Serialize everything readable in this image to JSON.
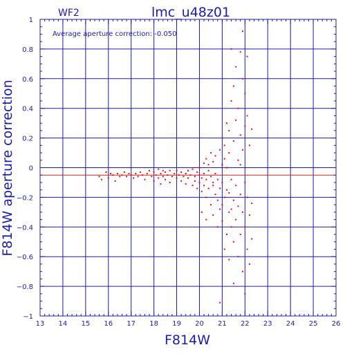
{
  "chart_data": {
    "type": "scatter",
    "title": "lmc_u48z01",
    "chip": "WF2",
    "annotation": "Average aperture correction: -0.050",
    "xlabel": "F814W",
    "ylabel": "F814W aperture correction",
    "xlim": [
      13,
      26
    ],
    "ylim": [
      -1,
      1
    ],
    "x_ticks": [
      "13",
      "14",
      "15",
      "16",
      "17",
      "18",
      "19",
      "20",
      "21",
      "22",
      "23",
      "24",
      "25",
      "26"
    ],
    "y_ticks": [
      "1",
      "0.8",
      "0.6",
      "0.4",
      "0.2",
      "0",
      "−0.2",
      "−0.4",
      "−0.6",
      "−0.8",
      "−1"
    ],
    "grid": true,
    "reference_lines": [
      {
        "name": "zero",
        "y": 0.0,
        "color": "#1c1ca8"
      },
      {
        "name": "average",
        "y": -0.05,
        "color": "#c82020"
      }
    ],
    "marker_color": "#e01010",
    "axis_color": "#1c1ca8",
    "series": [
      {
        "points": [
          [
            15.6,
            -0.06
          ],
          [
            15.7,
            -0.08
          ],
          [
            15.9,
            -0.03
          ],
          [
            16.0,
            -0.07
          ],
          [
            16.1,
            -0.04
          ],
          [
            16.2,
            -0.05
          ],
          [
            16.3,
            -0.09
          ],
          [
            16.4,
            -0.04
          ],
          [
            16.5,
            -0.06
          ],
          [
            16.6,
            -0.05
          ],
          [
            16.7,
            -0.03
          ],
          [
            16.8,
            -0.06
          ],
          [
            16.9,
            -0.04
          ],
          [
            17.0,
            -0.05
          ],
          [
            17.1,
            -0.07
          ],
          [
            17.2,
            -0.04
          ],
          [
            17.3,
            -0.06
          ],
          [
            17.4,
            -0.03
          ],
          [
            17.5,
            -0.05
          ],
          [
            17.6,
            -0.08
          ],
          [
            17.7,
            -0.04
          ],
          [
            17.8,
            -0.02
          ],
          [
            17.9,
            -0.06
          ],
          [
            18.0,
            -0.03
          ],
          [
            18.0,
            -0.09
          ],
          [
            18.1,
            -0.05
          ],
          [
            18.2,
            -0.01
          ],
          [
            18.2,
            -0.07
          ],
          [
            18.3,
            -0.04
          ],
          [
            18.3,
            -0.11
          ],
          [
            18.4,
            -0.02
          ],
          [
            18.4,
            -0.06
          ],
          [
            18.5,
            -0.08
          ],
          [
            18.5,
            -0.03
          ],
          [
            18.6,
            -0.05
          ],
          [
            18.7,
            -0.1
          ],
          [
            18.7,
            -0.02
          ],
          [
            18.8,
            -0.06
          ],
          [
            18.9,
            -0.04
          ],
          [
            19.0,
            -0.07
          ],
          [
            19.0,
            -0.02
          ],
          [
            19.1,
            -0.05
          ],
          [
            19.2,
            -0.09
          ],
          [
            19.2,
            -0.03
          ],
          [
            19.3,
            -0.06
          ],
          [
            19.4,
            -0.04
          ],
          [
            19.4,
            -0.11
          ],
          [
            19.5,
            -0.02
          ],
          [
            19.5,
            -0.07
          ],
          [
            19.6,
            -0.05
          ],
          [
            19.7,
            -0.12
          ],
          [
            19.7,
            -0.01
          ],
          [
            19.8,
            -0.06
          ],
          [
            19.8,
            -0.09
          ],
          [
            19.9,
            -0.03
          ],
          [
            19.9,
            -0.14
          ],
          [
            20.0,
            -0.05
          ],
          [
            20.0,
            -0.1
          ],
          [
            20.0,
            0.0
          ],
          [
            20.1,
            -0.07
          ],
          [
            20.1,
            -0.16
          ],
          [
            20.1,
            -0.3
          ],
          [
            20.2,
            -0.04
          ],
          [
            20.2,
            0.03
          ],
          [
            20.2,
            -0.12
          ],
          [
            20.3,
            -0.08
          ],
          [
            20.3,
            -0.2
          ],
          [
            20.3,
            0.06
          ],
          [
            20.3,
            -0.35
          ],
          [
            20.4,
            -0.02
          ],
          [
            20.4,
            -0.14
          ],
          [
            20.4,
            0.02
          ],
          [
            20.5,
            -0.06
          ],
          [
            20.5,
            -0.25
          ],
          [
            20.5,
            0.1
          ],
          [
            20.6,
            -0.1
          ],
          [
            20.6,
            -0.32
          ],
          [
            20.6,
            0.04
          ],
          [
            20.7,
            -0.18
          ],
          [
            20.7,
            -0.04
          ],
          [
            20.7,
            0.08
          ],
          [
            20.8,
            -0.22
          ],
          [
            20.8,
            -0.4
          ],
          [
            20.8,
            -0.08
          ],
          [
            20.9,
            0.12
          ],
          [
            20.9,
            -0.14
          ],
          [
            20.9,
            -0.28
          ],
          [
            21.0,
            0.02
          ],
          [
            21.0,
            -0.36
          ],
          [
            21.0,
            0.2
          ],
          [
            21.0,
            -0.1
          ],
          [
            21.1,
            -0.55
          ],
          [
            21.1,
            0.15
          ],
          [
            21.1,
            -0.2
          ],
          [
            21.1,
            0.06
          ],
          [
            21.2,
            -0.45
          ],
          [
            21.2,
            0.3
          ],
          [
            21.2,
            -0.15
          ],
          [
            21.2,
            0.0
          ],
          [
            21.3,
            -0.62
          ],
          [
            21.3,
            0.25
          ],
          [
            21.3,
            -0.3
          ],
          [
            21.3,
            0.1
          ],
          [
            21.4,
            0.8
          ],
          [
            21.4,
            -0.4
          ],
          [
            21.4,
            0.45
          ],
          [
            21.4,
            -0.08
          ],
          [
            21.5,
            0.55
          ],
          [
            21.5,
            -0.5
          ],
          [
            21.5,
            0.18
          ],
          [
            21.5,
            -0.22
          ],
          [
            21.5,
            -0.78
          ],
          [
            21.6,
            0.68
          ],
          [
            21.6,
            -0.35
          ],
          [
            21.6,
            0.32
          ],
          [
            21.6,
            -0.12
          ],
          [
            21.7,
            0.4
          ],
          [
            21.7,
            -0.6
          ],
          [
            21.7,
            0.05
          ],
          [
            21.7,
            -0.26
          ],
          [
            21.8,
            0.78
          ],
          [
            21.8,
            -0.45
          ],
          [
            21.8,
            0.22
          ],
          [
            21.8,
            -0.18
          ],
          [
            21.9,
            0.92
          ],
          [
            21.9,
            -0.7
          ],
          [
            21.9,
            0.6
          ],
          [
            21.9,
            -0.3
          ],
          [
            21.9,
            0.12
          ],
          [
            22.0,
            -0.85
          ],
          [
            22.0,
            0.5
          ],
          [
            22.0,
            -0.4
          ],
          [
            22.0,
            0.28
          ],
          [
            22.0,
            -0.1
          ],
          [
            22.1,
            0.75
          ],
          [
            22.1,
            -0.55
          ],
          [
            22.1,
            0.35
          ],
          [
            22.1,
            -0.2
          ],
          [
            22.2,
            -0.65
          ],
          [
            22.2,
            0.15
          ],
          [
            22.2,
            -0.32
          ],
          [
            22.3,
            0.26
          ],
          [
            22.3,
            -0.24
          ],
          [
            22.3,
            -0.48
          ],
          [
            20.9,
            -0.91
          ],
          [
            21.3,
            -0.17
          ],
          [
            20.6,
            -0.12
          ],
          [
            21.0,
            -0.25
          ],
          [
            21.4,
            -0.28
          ],
          [
            21.8,
            0.02
          ]
        ]
      }
    ]
  }
}
